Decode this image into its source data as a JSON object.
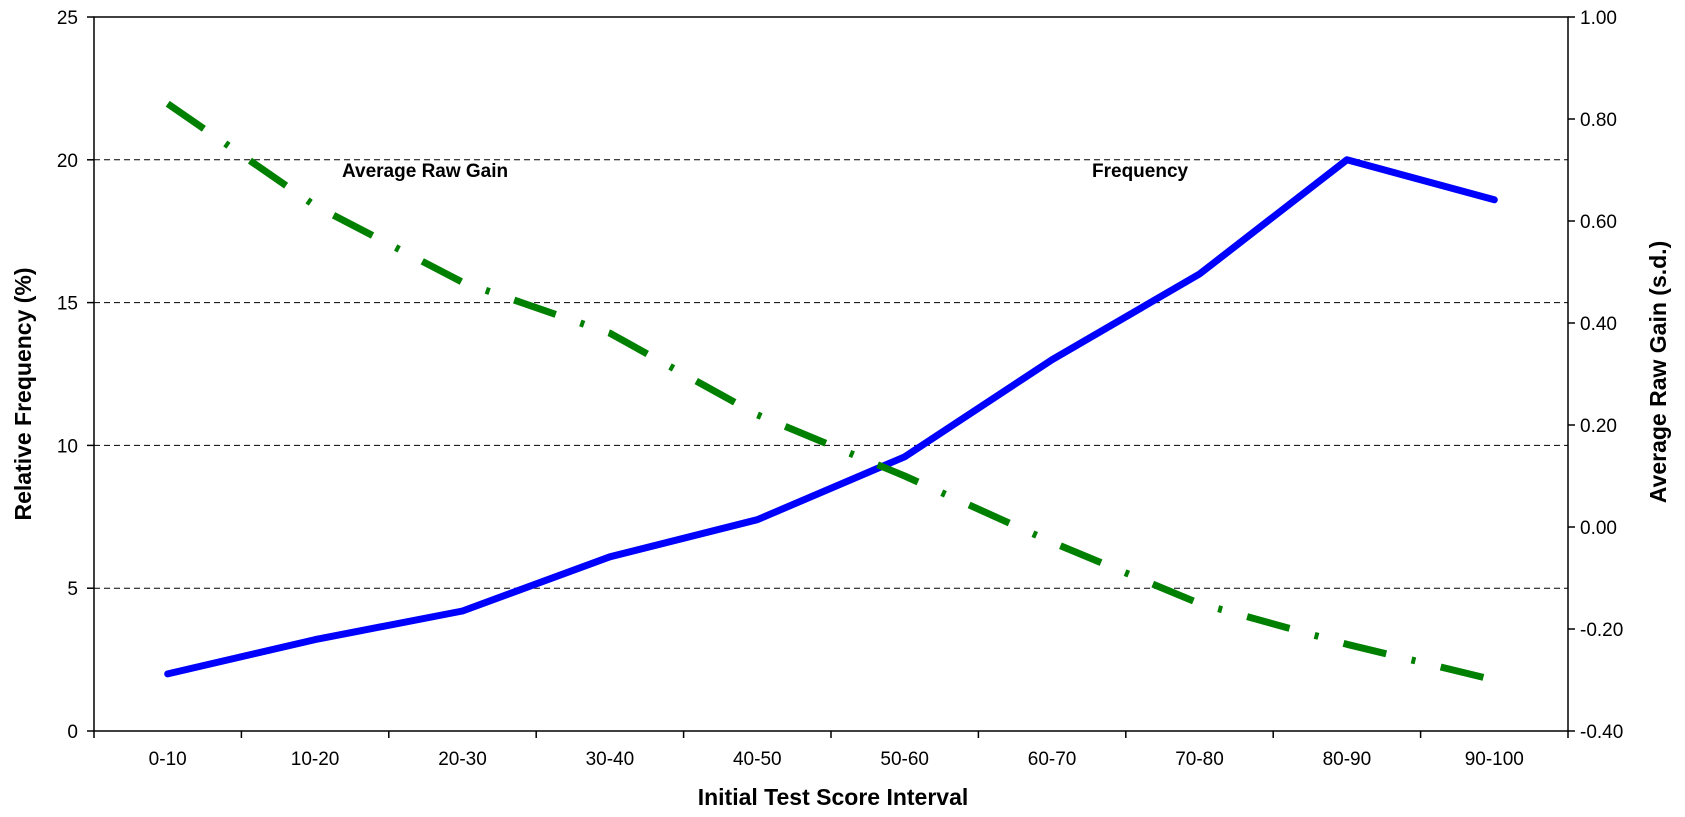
{
  "chart_data": {
    "type": "line",
    "title": "",
    "xlabel": "Initial Test Score Interval",
    "ylabel_left": "Relative Frequency (%)",
    "ylabel_right": "Average Raw Gain (s.d.)",
    "categories": [
      "0-10",
      "10-20",
      "20-30",
      "30-40",
      "40-50",
      "50-60",
      "60-70",
      "70-80",
      "80-90",
      "90-100"
    ],
    "left_axis": {
      "min": 0,
      "max": 25,
      "step": 5,
      "tick_labels": [
        "0",
        "5",
        "10",
        "15",
        "20",
        "25"
      ]
    },
    "right_axis": {
      "min": -0.4,
      "max": 1.0,
      "step": 0.2,
      "tick_labels": [
        "-0.40",
        "-0.20",
        "0.00",
        "0.20",
        "0.40",
        "0.60",
        "0.80",
        "1.00"
      ]
    },
    "grid": {
      "horizontal": true,
      "style": "dashed"
    },
    "series": [
      {
        "label": "Frequency",
        "axis": "left",
        "color": "#0000ff",
        "style": "solid",
        "values": [
          2.0,
          3.2,
          4.2,
          6.1,
          7.4,
          9.6,
          13.0,
          16.0,
          20.0,
          18.6
        ]
      },
      {
        "label": "Average Raw Gain",
        "axis": "right",
        "color": "#008000",
        "style": "dashed",
        "values": [
          0.83,
          0.63,
          0.48,
          0.38,
          0.22,
          0.1,
          -0.03,
          -0.15,
          -0.23,
          -0.3
        ]
      }
    ],
    "annotations": [
      "Average Raw Gain",
      "Frequency"
    ]
  }
}
